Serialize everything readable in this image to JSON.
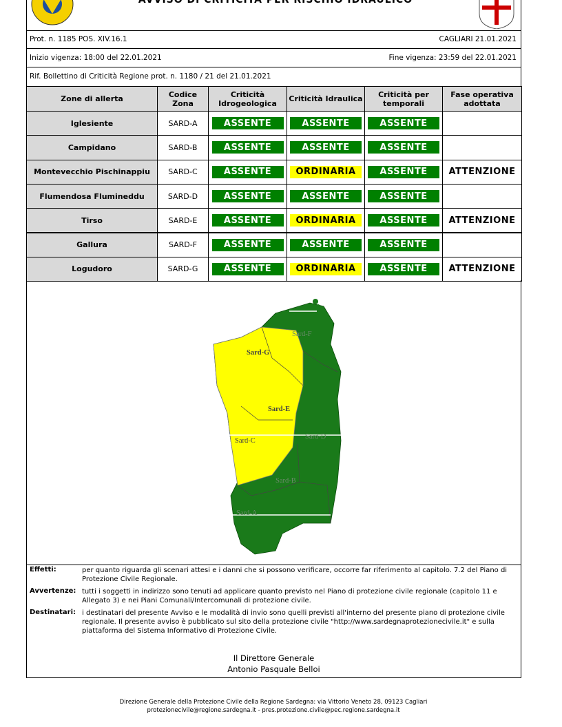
{
  "header": {
    "title": "AVVISO DI CRITICITÀ PER RISCHIO IDRAULICO",
    "prot": "Prot. n. 1185 POS. XIV.16.1",
    "place_date": "CAGLIARI 21.01.2021",
    "start": "Inizio vigenza: 18:00 del 22.01.2021",
    "end": "Fine vigenza: 23:59 del 22.01.2021",
    "ref": "Rif. Bollettino di Criticità Regione prot. n. 1180 / 21 del 21.01.2021"
  },
  "table": {
    "columns": [
      "Zone di allerta",
      "Codice Zona",
      "Criticità Idrogeologica",
      "Criticità Idraulica",
      "Criticità per temporali",
      "Fase operativa adottata"
    ],
    "level_colors": {
      "ASSENTE": "#008000",
      "ORDINARIA": "#ffff00"
    },
    "rows": [
      [
        "Iglesiente",
        "SARD-A",
        "ASSENTE",
        "ASSENTE",
        "ASSENTE"
      ],
      [
        "Campidano",
        "SARD-B",
        "ASSENTE",
        "ASSENTE",
        "ASSENTE"
      ],
      [
        "Montevecchio Pischinappiu",
        "SARD-C",
        "ASSENTE",
        "ORDINARIA",
        "ASSENTE",
        "ATTENZIONE"
      ],
      [
        "Flumendosa Flumineddu",
        "SARD-D",
        "ASSENTE",
        "ASSENTE",
        "ASSENTE"
      ],
      [
        "Tirso",
        "SARD-E",
        "ASSENTE",
        "ORDINARIA",
        "ASSENTE",
        "ATTENZIONE"
      ],
      [
        "Gallura",
        "SARD-F",
        "ASSENTE",
        "ASSENTE",
        "ASSENTE"
      ],
      [
        "Logudoro",
        "SARD-G",
        "ASSENTE",
        "ORDINARIA",
        "ASSENTE",
        "ATTENZIONE"
      ]
    ]
  },
  "map": {
    "labels": [
      "Sard-F",
      "Sard-G",
      "Sard-E",
      "Sard-D",
      "Sard-C",
      "Sard-B",
      "Sard-A"
    ]
  },
  "notes": [
    {
      "label": "Effetti:",
      "text": "per quanto riguarda gli scenari attesi e i danni che si possono verificare, occorre far riferimento al capitolo. 7.2 del Piano di Protezione Civile Regionale."
    },
    {
      "label": "Avvertenze:",
      "text": "tutti i soggetti in indirizzo sono tenuti ad applicare quanto previsto nel Piano di protezione civile regionale (capitolo 11 e Allegato 3) e nei Piani Comunali/Intercomunali di protezione civile."
    },
    {
      "label": "Destinatari:",
      "text": "i destinatari del presente Avviso e le modalità di invio sono quelli previsti all'interno del presente piano di protezione civile regionale. Il presente avviso è pubblicato sul sito della protezione civile \"http://www.sardegnaprotezionecivile.it\" e sulla piattaforma del Sistema Informativo di Protezione Civile."
    }
  ],
  "signature": [
    "Il Direttore Generale",
    "Antonio Pasquale Belloi"
  ],
  "footer": [
    "Direzione Generale della Protezione Civile della Regione Sardegna: via Vittorio Veneto 28, 09123 Cagliari",
    "protezionecivile@regione.sardegna.it - pres.protezione.civile@pec.regione.sardegna.it"
  ]
}
